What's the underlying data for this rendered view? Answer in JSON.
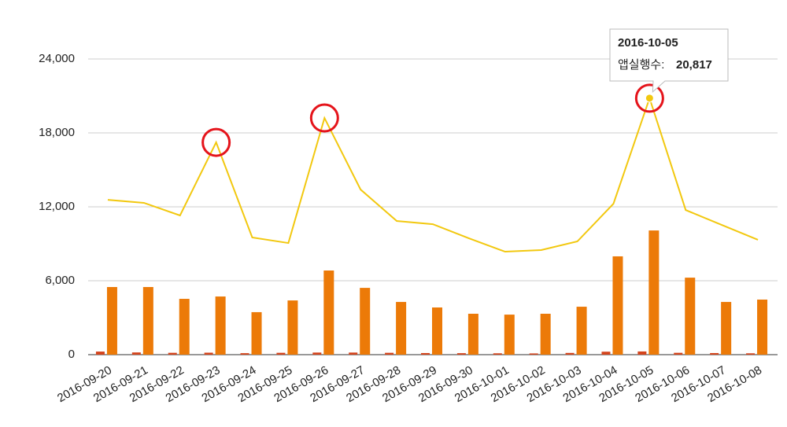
{
  "chart_data": {
    "type": "bar-line",
    "categories": [
      "2016-09-20",
      "2016-09-21",
      "2016-09-22",
      "2016-09-23",
      "2016-09-24",
      "2016-09-25",
      "2016-09-26",
      "2016-09-27",
      "2016-09-28",
      "2016-09-29",
      "2016-09-30",
      "2016-10-01",
      "2016-10-02",
      "2016-10-03",
      "2016-10-04",
      "2016-10-05",
      "2016-10-06",
      "2016-10-07",
      "2016-10-08"
    ],
    "series": [
      {
        "type": "line",
        "color": "#f2c80f",
        "values": [
          12570,
          12320,
          11300,
          17230,
          9510,
          9060,
          19210,
          13400,
          10850,
          10590,
          9440,
          8360,
          8490,
          9190,
          12250,
          20817,
          11740,
          10530,
          9320
        ],
        "value_labels": [
          null,
          null,
          null,
          null,
          null,
          null,
          null,
          null,
          null,
          null,
          null,
          null,
          null,
          null,
          null,
          "20,817",
          null,
          null,
          null
        ]
      },
      {
        "type": "bar",
        "color": "#d4441c",
        "values": [
          250,
          180,
          150,
          160,
          120,
          150,
          170,
          170,
          150,
          130,
          120,
          110,
          100,
          140,
          240,
          260,
          150,
          130,
          110
        ]
      },
      {
        "type": "bar",
        "color": "#ec7a08",
        "values": [
          5490,
          5490,
          4530,
          4720,
          3450,
          4400,
          6830,
          5420,
          4280,
          3830,
          3320,
          3250,
          3320,
          3890,
          7980,
          10080,
          6250,
          4280,
          4470
        ]
      }
    ],
    "ylim": [
      0,
      24000
    ],
    "yticks": [
      0,
      {
        "value": 6000,
        "label": "6,000"
      },
      {
        "value": 12000,
        "label": "12,000"
      },
      {
        "value": 18000,
        "label": "18,000"
      },
      {
        "value": 24000,
        "label": "24,000"
      }
    ],
    "grid": true,
    "highlight": [
      3,
      6,
      15
    ],
    "tooltip": {
      "index": 15,
      "title": "2016-10-05",
      "label": "앱실행수:"
    }
  }
}
